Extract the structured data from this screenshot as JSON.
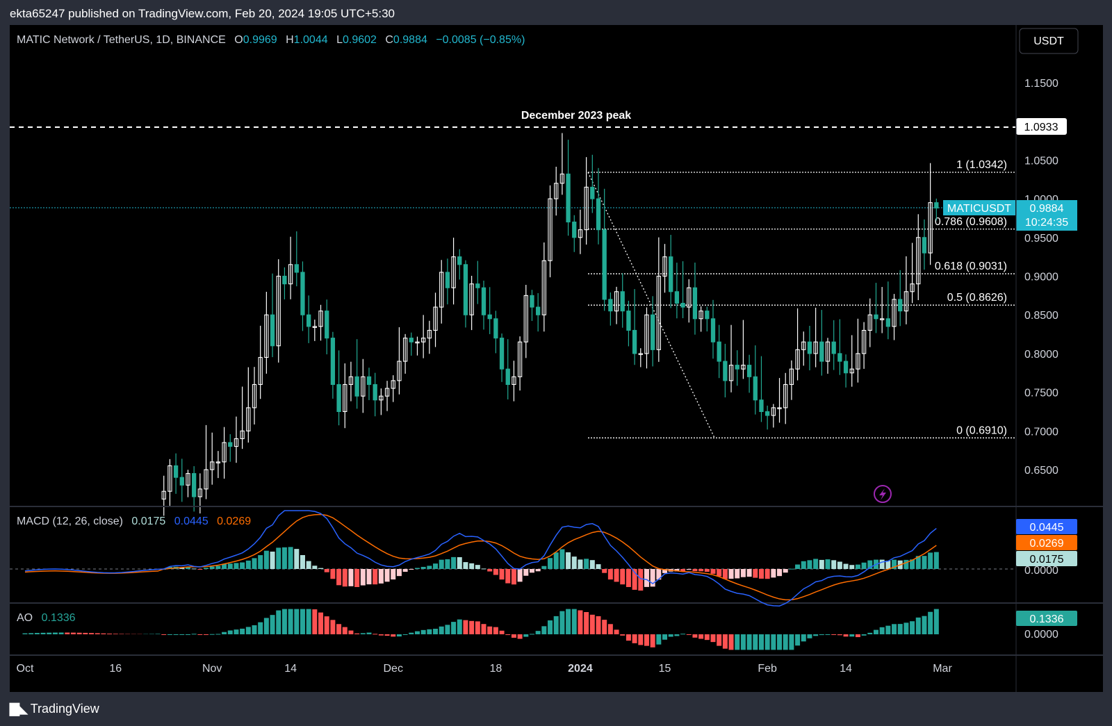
{
  "publisher_line": "ekta65247 published on TradingView.com, Feb 20, 2024 19:05 UTC+5:30",
  "footer_brand": "TradingView",
  "colors": {
    "background": "#000000",
    "up_candle": "#ffffff",
    "down_candle": "#22ab94",
    "price_line": "#22b8cf",
    "macd_line": "#2962ff",
    "signal_line": "#ff6d00",
    "hist_pos_strong": "#26a69a",
    "hist_pos_weak": "#b2dfdb",
    "hist_neg_strong": "#ff5252",
    "hist_neg_weak": "#ffcdd2",
    "ao_up": "#26a69a",
    "ao_down": "#ff5252"
  },
  "header": {
    "symbol": "MATIC Network / TetherUS, 1D, BINANCE",
    "open_label": "O",
    "open": "0.9969",
    "high_label": "H",
    "high": "1.0044",
    "low_label": "L",
    "low": "0.9602",
    "close_label": "C",
    "close": "0.9884",
    "change": "−0.0085 (−0.85%)"
  },
  "currency_button": "USDT",
  "annotations": {
    "peak_label": "December 2023 peak",
    "peak_value": "1.0933",
    "symbol_tag": "MATICUSDT",
    "last_price": "0.9884",
    "countdown": "10:24:35"
  },
  "fib_levels": [
    {
      "label": "1 (1.0342)",
      "value": 1.0342
    },
    {
      "label": "0.786 (0.9608)",
      "value": 0.9608
    },
    {
      "label": "0.618 (0.9031)",
      "value": 0.9031
    },
    {
      "label": "0.5 (0.8626)",
      "value": 0.8626
    },
    {
      "label": "0 (0.6910)",
      "value": 0.691
    }
  ],
  "macd_panel": {
    "title": "MACD (12, 26, close)",
    "hist_value": "0.0175",
    "macd_value": "0.0445",
    "signal_value": "0.0269",
    "zero_label": "0.0000"
  },
  "ao_panel": {
    "title": "AO",
    "value": "0.1336",
    "zero_label": "0.0000"
  },
  "chart_data": {
    "type": "candlestick",
    "title": "MATIC Network / TetherUS, 1D, BINANCE",
    "y_ticks": [
      "1.1500",
      "1.0500",
      "1.0000",
      "0.9500",
      "0.9000",
      "0.8500",
      "0.8000",
      "0.7500",
      "0.7000",
      "0.6500"
    ],
    "y_tick_values": [
      1.15,
      1.05,
      1.0,
      0.95,
      0.9,
      0.85,
      0.8,
      0.75,
      0.7,
      0.65
    ],
    "ylim": [
      0.61,
      1.21
    ],
    "x_ticks": [
      {
        "label": "Oct",
        "day": 0
      },
      {
        "label": "16",
        "day": 15
      },
      {
        "label": "Nov",
        "day": 31
      },
      {
        "label": "14",
        "day": 44
      },
      {
        "label": "Dec",
        "day": 61
      },
      {
        "label": "18",
        "day": 78
      },
      {
        "label": "2024",
        "day": 92
      },
      {
        "label": "15",
        "day": 106
      },
      {
        "label": "Feb",
        "day": 123
      },
      {
        "label": "14",
        "day": 136
      },
      {
        "label": "Mar",
        "day": 152
      }
    ],
    "x_note": "day = days since Oct 1, 2023",
    "closes": [
      [
        23,
        0.622
      ],
      [
        24,
        0.655
      ],
      [
        25,
        0.64
      ],
      [
        26,
        0.63
      ],
      [
        27,
        0.645
      ],
      [
        28,
        0.615
      ],
      [
        29,
        0.625
      ],
      [
        30,
        0.65
      ],
      [
        31,
        0.66
      ],
      [
        32,
        0.66
      ],
      [
        33,
        0.685
      ],
      [
        34,
        0.68
      ],
      [
        35,
        0.69
      ],
      [
        36,
        0.7
      ],
      [
        37,
        0.73
      ],
      [
        38,
        0.76
      ],
      [
        39,
        0.795
      ],
      [
        40,
        0.85
      ],
      [
        41,
        0.81
      ],
      [
        42,
        0.9
      ],
      [
        43,
        0.89
      ],
      [
        44,
        0.915
      ],
      [
        45,
        0.905
      ],
      [
        46,
        0.85
      ],
      [
        47,
        0.835
      ],
      [
        48,
        0.835
      ],
      [
        49,
        0.855
      ],
      [
        50,
        0.82
      ],
      [
        51,
        0.76
      ],
      [
        52,
        0.725
      ],
      [
        53,
        0.76
      ],
      [
        54,
        0.77
      ],
      [
        55,
        0.745
      ],
      [
        56,
        0.77
      ],
      [
        57,
        0.76
      ],
      [
        58,
        0.74
      ],
      [
        59,
        0.745
      ],
      [
        60,
        0.755
      ],
      [
        61,
        0.765
      ],
      [
        62,
        0.79
      ],
      [
        63,
        0.82
      ],
      [
        64,
        0.815
      ],
      [
        65,
        0.815
      ],
      [
        66,
        0.82
      ],
      [
        67,
        0.83
      ],
      [
        68,
        0.86
      ],
      [
        69,
        0.905
      ],
      [
        70,
        0.885
      ],
      [
        71,
        0.925
      ],
      [
        72,
        0.915
      ],
      [
        73,
        0.85
      ],
      [
        74,
        0.89
      ],
      [
        75,
        0.885
      ],
      [
        76,
        0.85
      ],
      [
        77,
        0.845
      ],
      [
        78,
        0.82
      ],
      [
        79,
        0.78
      ],
      [
        80,
        0.76
      ],
      [
        81,
        0.77
      ],
      [
        82,
        0.815
      ],
      [
        83,
        0.875
      ],
      [
        84,
        0.86
      ],
      [
        85,
        0.85
      ],
      [
        86,
        0.92
      ],
      [
        87,
        1.0
      ],
      [
        88,
        1.02
      ],
      [
        89,
        1.032
      ],
      [
        90,
        0.97
      ],
      [
        91,
        0.95
      ],
      [
        92,
        0.96
      ],
      [
        93,
        1.015
      ],
      [
        94,
        1.0
      ],
      [
        95,
        0.96
      ],
      [
        96,
        0.87
      ],
      [
        97,
        0.855
      ],
      [
        98,
        0.88
      ],
      [
        99,
        0.855
      ],
      [
        100,
        0.83
      ],
      [
        101,
        0.8
      ],
      [
        102,
        0.8
      ],
      [
        103,
        0.85
      ],
      [
        104,
        0.805
      ],
      [
        105,
        0.9
      ],
      [
        106,
        0.925
      ],
      [
        107,
        0.88
      ],
      [
        108,
        0.865
      ],
      [
        109,
        0.86
      ],
      [
        110,
        0.885
      ],
      [
        111,
        0.845
      ],
      [
        112,
        0.855
      ],
      [
        113,
        0.845
      ],
      [
        114,
        0.815
      ],
      [
        115,
        0.79
      ],
      [
        116,
        0.765
      ],
      [
        117,
        0.785
      ],
      [
        118,
        0.78
      ],
      [
        119,
        0.785
      ],
      [
        120,
        0.77
      ],
      [
        121,
        0.74
      ],
      [
        122,
        0.725
      ],
      [
        123,
        0.72
      ],
      [
        124,
        0.73
      ],
      [
        125,
        0.73
      ],
      [
        126,
        0.76
      ],
      [
        127,
        0.78
      ],
      [
        128,
        0.805
      ],
      [
        129,
        0.815
      ],
      [
        130,
        0.8
      ],
      [
        131,
        0.815
      ],
      [
        132,
        0.79
      ],
      [
        133,
        0.815
      ],
      [
        134,
        0.8
      ],
      [
        135,
        0.79
      ],
      [
        136,
        0.775
      ],
      [
        137,
        0.78
      ],
      [
        138,
        0.8
      ],
      [
        139,
        0.83
      ],
      [
        140,
        0.85
      ],
      [
        141,
        0.845
      ],
      [
        142,
        0.845
      ],
      [
        143,
        0.835
      ],
      [
        144,
        0.87
      ],
      [
        145,
        0.855
      ],
      [
        146,
        0.88
      ],
      [
        147,
        0.89
      ],
      [
        148,
        0.95
      ],
      [
        149,
        0.93
      ],
      [
        150,
        0.995
      ],
      [
        151,
        0.988
      ]
    ]
  }
}
